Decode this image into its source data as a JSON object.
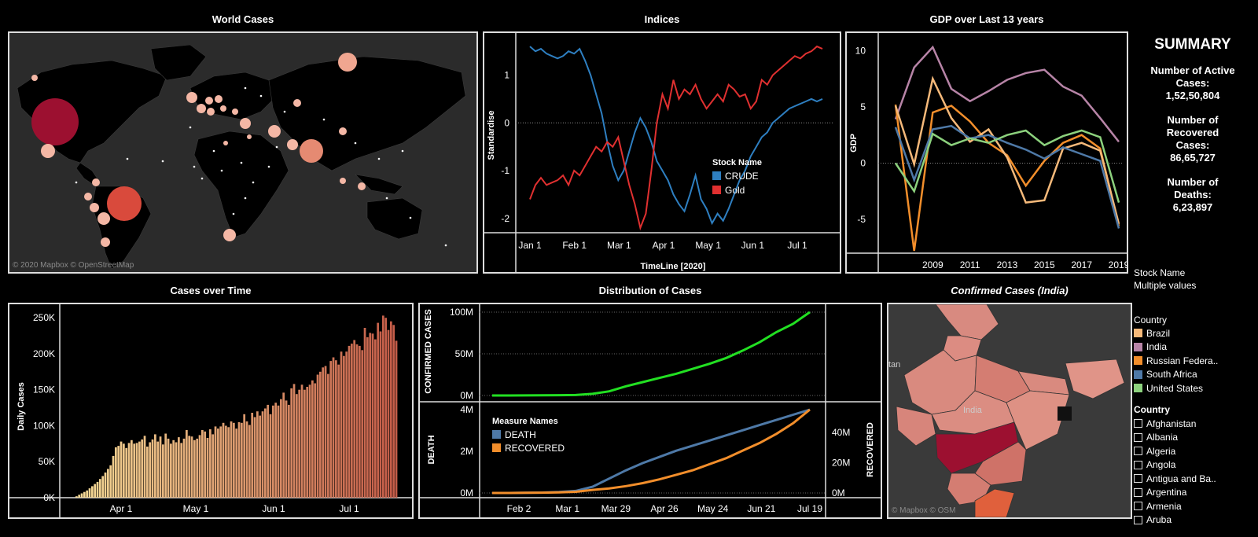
{
  "titles": {
    "world": "World Cases",
    "indices": "Indices",
    "gdp": "GDP over Last 13 years",
    "cases_time": "Cases over Time",
    "distribution": "Distribution of Cases",
    "india": "Confirmed Cases (India)"
  },
  "world_map": {
    "copyright": "© 2020 Mapbox © OpenStreetMap"
  },
  "india_map": {
    "copyright": "© Mapbox © OSM",
    "label": "India",
    "edge_label": "tan"
  },
  "summary": {
    "heading": "SUMMARY",
    "active_label": "Number of Active Cases:",
    "active_value": "1,52,50,804",
    "recovered_label": "Number of Recovered Cases:",
    "recovered_value": "86,65,727",
    "deaths_label": "Number of Deaths:",
    "deaths_value": "6,23,897"
  },
  "filters": {
    "stock_title": "Stock Name",
    "stock_value": "Multiple values",
    "country_legend_title": "Country",
    "country_legend": [
      {
        "name": "Brazil",
        "color": "#f5b97a"
      },
      {
        "name": "India",
        "color": "#b784a7"
      },
      {
        "name": "Russian Federa..",
        "color": "#f28e2b"
      },
      {
        "name": "South Africa",
        "color": "#4e79a7"
      },
      {
        "name": "United States",
        "color": "#8cd17d"
      }
    ],
    "country_filter_title": "Country",
    "country_filter": [
      "Afghanistan",
      "Albania",
      "Algeria",
      "Angola",
      "Antigua and Ba..",
      "Argentina",
      "Armenia",
      "Aruba"
    ]
  },
  "colors": {
    "crude": "#2e7fc1",
    "gold": "#e03030",
    "confirmed": "#22e022",
    "death": "#4e79a7",
    "recovered": "#f28e2b"
  },
  "chart_data": [
    {
      "type": "line",
      "id": "indices",
      "title": "Indices",
      "xlabel": "TimeLine [2020]",
      "ylabel": "Standardise",
      "x_ticks": [
        "Jan 1",
        "Feb 1",
        "Mar 1",
        "Apr 1",
        "May 1",
        "Jun 1",
        "Jul 1"
      ],
      "y_ticks": [
        -2,
        -1,
        0,
        1
      ],
      "ylim": [
        -2.3,
        1.75
      ],
      "legend_title": "Stock Name",
      "series": [
        {
          "name": "CRUDE",
          "color": "#2e7fc1",
          "values": [
            1.6,
            1.5,
            1.55,
            1.45,
            1.4,
            1.35,
            1.4,
            1.5,
            1.45,
            1.55,
            1.3,
            1.0,
            0.6,
            0.2,
            -0.4,
            -0.9,
            -1.2,
            -1.0,
            -0.6,
            -0.2,
            0.1,
            -0.1,
            -0.4,
            -0.8,
            -1.0,
            -1.2,
            -1.5,
            -1.7,
            -1.85,
            -1.5,
            -1.1,
            -1.6,
            -1.8,
            -2.1,
            -1.9,
            -2.05,
            -1.8,
            -1.5,
            -1.2,
            -1.0,
            -0.7,
            -0.5,
            -0.3,
            -0.2,
            0.0,
            0.1,
            0.2,
            0.3,
            0.35,
            0.4,
            0.45,
            0.5,
            0.45,
            0.5
          ]
        },
        {
          "name": "Gold",
          "color": "#e03030",
          "values": [
            -1.6,
            -1.3,
            -1.15,
            -1.3,
            -1.25,
            -1.2,
            -1.1,
            -1.3,
            -1.0,
            -1.1,
            -0.9,
            -0.7,
            -0.5,
            -0.6,
            -0.4,
            -0.5,
            -0.3,
            -0.8,
            -1.3,
            -1.7,
            -2.2,
            -1.9,
            -1.0,
            0.0,
            0.6,
            0.3,
            0.9,
            0.5,
            0.7,
            0.6,
            0.8,
            0.5,
            0.3,
            0.45,
            0.6,
            0.45,
            0.8,
            0.7,
            0.55,
            0.6,
            0.3,
            0.45,
            0.9,
            0.8,
            1.0,
            1.1,
            1.2,
            1.3,
            1.4,
            1.35,
            1.45,
            1.5,
            1.6,
            1.55
          ]
        }
      ]
    },
    {
      "type": "line",
      "id": "gdp",
      "title": "GDP over Last 13 years",
      "ylabel": "GDP",
      "x": [
        2007,
        2008,
        2009,
        2010,
        2011,
        2012,
        2013,
        2014,
        2015,
        2016,
        2017,
        2018,
        2019
      ],
      "x_ticks": [
        2009,
        2011,
        2013,
        2015,
        2017,
        2019
      ],
      "y_ticks": [
        -5,
        0,
        5,
        10
      ],
      "ylim": [
        -8,
        11
      ],
      "series": [
        {
          "name": "India",
          "color": "#b784a7",
          "values": [
            3.9,
            8.5,
            10.3,
            6.6,
            5.5,
            6.4,
            7.4,
            8.0,
            8.3,
            6.8,
            6.0,
            4.0,
            1.9
          ]
        },
        {
          "name": "Russian Federation",
          "color": "#f28e2b",
          "values": [
            5.2,
            -7.8,
            4.5,
            5.1,
            3.7,
            1.8,
            0.7,
            -2.0,
            0.2,
            1.8,
            2.5,
            1.3,
            -5.6
          ]
        },
        {
          "name": "Brazil",
          "color": "#f5b97a",
          "values": [
            5.1,
            -0.1,
            7.5,
            4.0,
            1.9,
            3.0,
            0.5,
            -3.5,
            -3.3,
            1.3,
            1.8,
            1.1,
            -5.4
          ]
        },
        {
          "name": "South Africa",
          "color": "#4e79a7",
          "values": [
            3.2,
            -1.5,
            3.0,
            3.3,
            2.2,
            2.5,
            1.8,
            1.2,
            0.4,
            1.4,
            0.8,
            0.2,
            -5.8
          ]
        },
        {
          "name": "United States",
          "color": "#8cd17d",
          "values": [
            0.0,
            -2.5,
            2.6,
            1.6,
            2.2,
            1.8,
            2.5,
            2.9,
            1.6,
            2.4,
            2.9,
            2.3,
            -3.5
          ]
        }
      ]
    },
    {
      "type": "bar",
      "id": "cases_time",
      "title": "Cases over Time",
      "ylabel": "Daily Cases",
      "x_ticks": [
        "Apr 1",
        "May 1",
        "Jun 1",
        "Jul 1"
      ],
      "y_ticks": [
        "0K",
        "50K",
        "100K",
        "150K",
        "200K",
        "250K"
      ],
      "ylim": [
        0,
        260000
      ],
      "values": [
        2000,
        4000,
        6000,
        8000,
        10000,
        13000,
        16000,
        19000,
        22000,
        26000,
        30000,
        35000,
        40000,
        45000,
        58000,
        70000,
        72000,
        78000,
        75000,
        69000,
        76000,
        80000,
        75000,
        76000,
        78000,
        81000,
        86000,
        71000,
        77000,
        81000,
        88000,
        78000,
        85000,
        74000,
        89000,
        82000,
        75000,
        80000,
        77000,
        84000,
        76000,
        82000,
        94000,
        86000,
        85000,
        80000,
        82000,
        87000,
        94000,
        92000,
        83000,
        95000,
        88000,
        99000,
        96000,
        99000,
        104000,
        100000,
        98000,
        106000,
        104000,
        96000,
        105000,
        104000,
        116000,
        106000,
        101000,
        118000,
        112000,
        120000,
        114000,
        120000,
        124000,
        129000,
        116000,
        128000,
        132000,
        128000,
        137000,
        146000,
        135000,
        129000,
        152000,
        158000,
        144000,
        150000,
        157000,
        150000,
        154000,
        157000,
        163000,
        159000,
        171000,
        175000,
        181000,
        183000,
        172000,
        190000,
        195000,
        191000,
        185000,
        203000,
        197000,
        203000,
        211000,
        214000,
        219000,
        213000,
        211000,
        205000,
        236000,
        223000,
        229000,
        228000,
        220000,
        243000,
        231000,
        253000,
        250000,
        233000,
        245000,
        240000,
        218000
      ]
    },
    {
      "type": "line",
      "id": "distribution_confirmed",
      "title": "Distribution of Cases",
      "ylabel": "CONFIRMED CASES",
      "y_ticks": [
        "0M",
        "50M",
        "100M"
      ],
      "ylim": [
        0,
        100000000
      ],
      "series": [
        {
          "name": "CONFIRMED CASES",
          "color": "#22e022",
          "values": [
            0,
            0,
            0.1,
            0.2,
            0.4,
            0.6,
            2,
            5,
            11,
            16,
            21,
            26,
            32,
            38,
            45,
            54,
            64,
            76,
            86,
            100
          ]
        }
      ]
    },
    {
      "type": "line",
      "id": "distribution_death_recovered",
      "ylabel": "DEATH",
      "y2label": "RECOVERED",
      "x_ticks": [
        "Feb 2",
        "Mar 1",
        "Mar 29",
        "Apr 26",
        "May 24",
        "Jun 21",
        "Jul 19"
      ],
      "y_ticks": [
        "0M",
        "2M",
        "4M"
      ],
      "y2_ticks": [
        "0M",
        "20M",
        "40M"
      ],
      "legend_title": "Measure Names",
      "series": [
        {
          "name": "DEATH",
          "color": "#4e79a7",
          "values": [
            0,
            0,
            0.01,
            0.02,
            0.05,
            0.1,
            0.3,
            0.7,
            1.1,
            1.45,
            1.75,
            2.05,
            2.3,
            2.55,
            2.8,
            3.05,
            3.3,
            3.55,
            3.8,
            4.05
          ]
        },
        {
          "name": "RECOVERED",
          "color": "#f28e2b",
          "values": [
            0,
            0,
            0.1,
            0.2,
            0.4,
            0.8,
            2,
            3,
            4.5,
            6.5,
            9,
            12,
            15,
            19,
            23,
            28,
            33,
            39,
            46,
            55
          ]
        }
      ]
    }
  ]
}
